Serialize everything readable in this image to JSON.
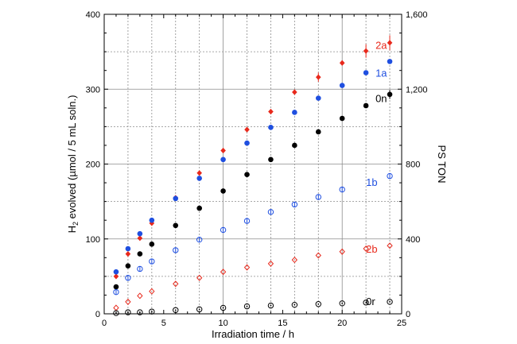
{
  "chart_data": {
    "type": "scatter",
    "xlabel": "Irradiation time / h",
    "ylabel_main": "H",
    "ylabel_sub": "2",
    "ylabel_rest": " evolved (µmol / 5 mL soln.)",
    "y2label": "PS TON",
    "xlim": [
      0,
      25
    ],
    "ylim": [
      0,
      400
    ],
    "y2lim": [
      0,
      1600
    ],
    "x_ticks": [
      "0",
      "5",
      "10",
      "15",
      "20",
      "25"
    ],
    "y_ticks": [
      "0",
      "100",
      "200",
      "300",
      "400"
    ],
    "y2_ticks": [
      "0",
      "400",
      "800",
      "1,200",
      "1,600"
    ],
    "grid": true,
    "series": [
      {
        "name": "2a",
        "color": "#e8291c",
        "marker": "diamond-filled",
        "x": [
          1,
          2,
          3,
          4,
          6,
          8,
          10,
          12,
          14,
          16,
          18,
          20,
          22,
          24
        ],
        "y": [
          50,
          80,
          101,
          121,
          155,
          188,
          218,
          246,
          270,
          296,
          316,
          335,
          351,
          362
        ]
      },
      {
        "name": "1a",
        "color": "#1f4fe0",
        "marker": "circle-filled",
        "x": [
          1,
          2,
          3,
          4,
          6,
          8,
          10,
          12,
          14,
          16,
          18,
          20,
          22,
          24
        ],
        "y": [
          56,
          87,
          107,
          125,
          154,
          181,
          206,
          228,
          249,
          269,
          288,
          305,
          322,
          337
        ]
      },
      {
        "name": "0n",
        "color": "#000000",
        "marker": "circle-filled",
        "x": [
          1,
          2,
          3,
          4,
          6,
          8,
          10,
          12,
          14,
          16,
          18,
          20,
          22,
          24
        ],
        "y": [
          36,
          64,
          80,
          93,
          118,
          141,
          164,
          186,
          206,
          225,
          243,
          261,
          278,
          293
        ]
      },
      {
        "name": "1b",
        "color": "#1f4fe0",
        "marker": "circle-bar",
        "x": [
          1,
          2,
          3,
          4,
          6,
          8,
          10,
          12,
          14,
          16,
          18,
          20,
          24
        ],
        "y": [
          29,
          48,
          60,
          70,
          85,
          99,
          112,
          124,
          136,
          146,
          156,
          166,
          184
        ]
      },
      {
        "name": "2b",
        "color": "#e8291c",
        "marker": "diamond-open",
        "x": [
          1,
          2,
          3,
          4,
          6,
          8,
          10,
          12,
          14,
          16,
          18,
          20,
          22,
          24
        ],
        "y": [
          8,
          16,
          24,
          30,
          40,
          48,
          56,
          62,
          67,
          72,
          78,
          83,
          87,
          91
        ]
      },
      {
        "name": "0r",
        "color": "#000000",
        "marker": "circle-dot",
        "x": [
          1,
          2,
          3,
          4,
          6,
          8,
          10,
          12,
          14,
          16,
          18,
          20,
          22,
          24
        ],
        "y": [
          1,
          2,
          2,
          3,
          5,
          6,
          8,
          10,
          11,
          12,
          13,
          14,
          15,
          16
        ]
      }
    ],
    "error_bars": [
      {
        "series": "2a",
        "x": 18,
        "y": 316,
        "err": 6
      },
      {
        "series": "2a",
        "x": 22,
        "y": 351,
        "err": 9
      },
      {
        "series": "2a",
        "x": 24,
        "y": 362,
        "err": 10
      },
      {
        "series": "0n",
        "x": 24,
        "y": 293,
        "err": 6
      }
    ],
    "series_labels": [
      {
        "text": "2a",
        "color": "#e8291c",
        "x": 22.8,
        "y": 358
      },
      {
        "text": "1a",
        "color": "#1f4fe0",
        "x": 22.8,
        "y": 321
      },
      {
        "text": "0n",
        "color": "#000000",
        "x": 22.8,
        "y": 287
      },
      {
        "text": "1b",
        "color": "#1f4fe0",
        "x": 22.0,
        "y": 175
      },
      {
        "text": "2b",
        "color": "#e8291c",
        "x": 22.0,
        "y": 86
      },
      {
        "text": "0r",
        "color": "#000000",
        "x": 22.0,
        "y": 16
      }
    ]
  }
}
